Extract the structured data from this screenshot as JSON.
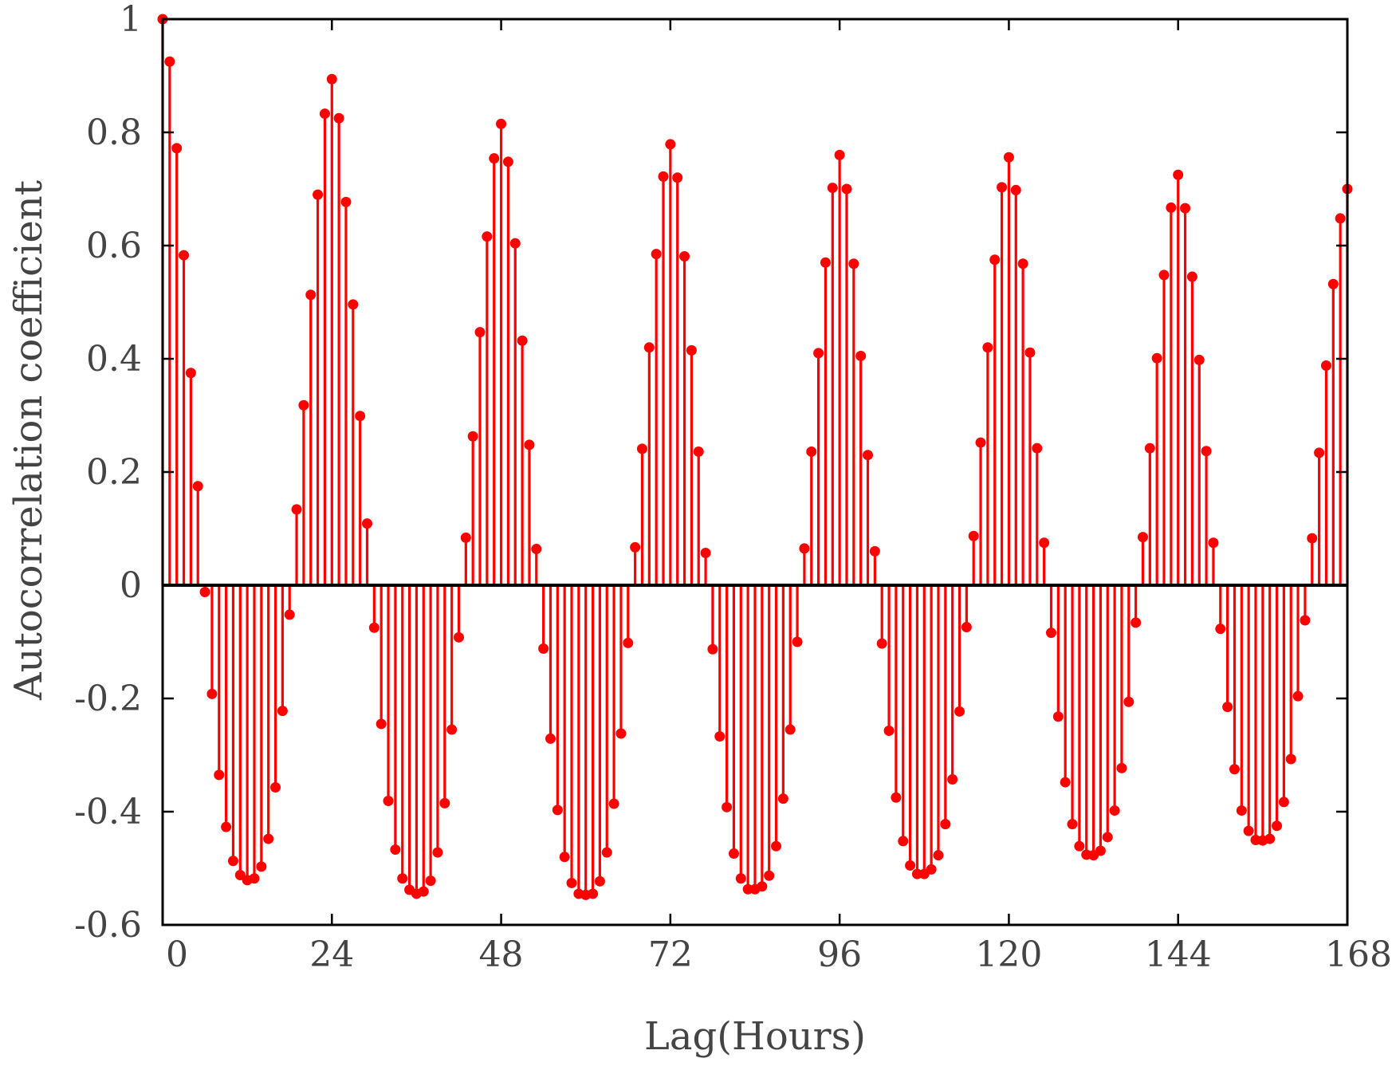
{
  "chart_data": {
    "type": "stem",
    "xlabel": "Lag(Hours)",
    "ylabel": "Autocorrelation coefficient",
    "xlim": [
      0,
      168
    ],
    "ylim": [
      -0.6,
      1
    ],
    "xticks": [
      0,
      24,
      48,
      72,
      96,
      120,
      144,
      168
    ],
    "yticks": [
      -0.6,
      -0.4,
      -0.2,
      0,
      0.2,
      0.4,
      0.6,
      0.8,
      1
    ],
    "ytick_labels": [
      "-0.6",
      "-0.4",
      "-0.2",
      "0",
      "0.2",
      "0.4",
      "0.6",
      "0.8",
      "1"
    ],
    "grid": false,
    "color": "#ff0000",
    "series": [
      {
        "lags_start": 0,
        "values": [
          1.0,
          0.925,
          0.772,
          0.583,
          0.375,
          0.175,
          -0.012,
          -0.192,
          -0.335,
          -0.427,
          -0.487,
          -0.512,
          -0.521,
          -0.518,
          -0.497,
          -0.448,
          -0.357,
          -0.222,
          -0.052,
          0.134,
          0.318,
          0.513,
          0.69,
          0.833,
          0.894,
          0.825,
          0.677,
          0.496,
          0.299,
          0.109,
          -0.075,
          -0.245,
          -0.381,
          -0.467,
          -0.518,
          -0.538,
          -0.545,
          -0.541,
          -0.522,
          -0.472,
          -0.385,
          -0.255,
          -0.092,
          0.084,
          0.263,
          0.447,
          0.616,
          0.754,
          0.815,
          0.748,
          0.604,
          0.432,
          0.248,
          0.064,
          -0.112,
          -0.271,
          -0.397,
          -0.48,
          -0.526,
          -0.545,
          -0.547,
          -0.545,
          -0.523,
          -0.472,
          -0.386,
          -0.262,
          -0.102,
          0.067,
          0.241,
          0.42,
          0.585,
          0.722,
          0.779,
          0.72,
          0.581,
          0.415,
          0.236,
          0.057,
          -0.113,
          -0.267,
          -0.392,
          -0.474,
          -0.518,
          -0.537,
          -0.537,
          -0.532,
          -0.513,
          -0.461,
          -0.377,
          -0.255,
          -0.1,
          0.065,
          0.236,
          0.41,
          0.57,
          0.702,
          0.76,
          0.7,
          0.568,
          0.405,
          0.23,
          0.06,
          -0.103,
          -0.257,
          -0.375,
          -0.452,
          -0.495,
          -0.51,
          -0.51,
          -0.502,
          -0.477,
          -0.422,
          -0.343,
          -0.223,
          -0.074,
          0.087,
          0.252,
          0.42,
          0.575,
          0.703,
          0.756,
          0.698,
          0.568,
          0.411,
          0.242,
          0.075,
          -0.084,
          -0.232,
          -0.348,
          -0.422,
          -0.461,
          -0.476,
          -0.477,
          -0.469,
          -0.445,
          -0.398,
          -0.323,
          -0.206,
          -0.066,
          0.085,
          0.242,
          0.401,
          0.548,
          0.667,
          0.725,
          0.666,
          0.545,
          0.398,
          0.237,
          0.075,
          -0.077,
          -0.215,
          -0.325,
          -0.398,
          -0.434,
          -0.45,
          -0.451,
          -0.448,
          -0.425,
          -0.383,
          -0.307,
          -0.196,
          -0.062,
          0.083,
          0.234,
          0.388,
          0.532,
          0.648,
          0.7
        ]
      }
    ]
  }
}
